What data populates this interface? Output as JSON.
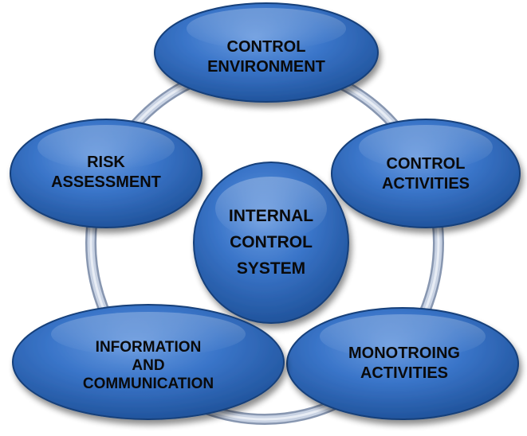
{
  "diagram": {
    "center": {
      "lines": [
        "INTERNAL",
        "CONTROL",
        "SYSTEM"
      ]
    },
    "nodes": [
      {
        "id": "control-environment",
        "lines": [
          "CONTROL",
          "ENVIRONMENT"
        ]
      },
      {
        "id": "control-activities",
        "lines": [
          "CONTROL",
          "ACTIVITIES"
        ]
      },
      {
        "id": "monitoring-activities",
        "lines": [
          "MONOTROING",
          "ACTIVITIES"
        ]
      },
      {
        "id": "information-communication",
        "lines": [
          "INFORMATION",
          "AND",
          "COMMUNICATION"
        ]
      },
      {
        "id": "risk-assessment",
        "lines": [
          "RISK",
          "ASSESSMENT"
        ]
      }
    ],
    "colors": {
      "node_fill_light": "#5b8fd6",
      "node_fill_mid": "#2f6bc2",
      "node_fill_dark": "#1c4e95",
      "node_border": "#163f7a",
      "ring": "#b8c4d8",
      "ring_edge": "#8796b0",
      "text": "#0a0a0a"
    }
  }
}
